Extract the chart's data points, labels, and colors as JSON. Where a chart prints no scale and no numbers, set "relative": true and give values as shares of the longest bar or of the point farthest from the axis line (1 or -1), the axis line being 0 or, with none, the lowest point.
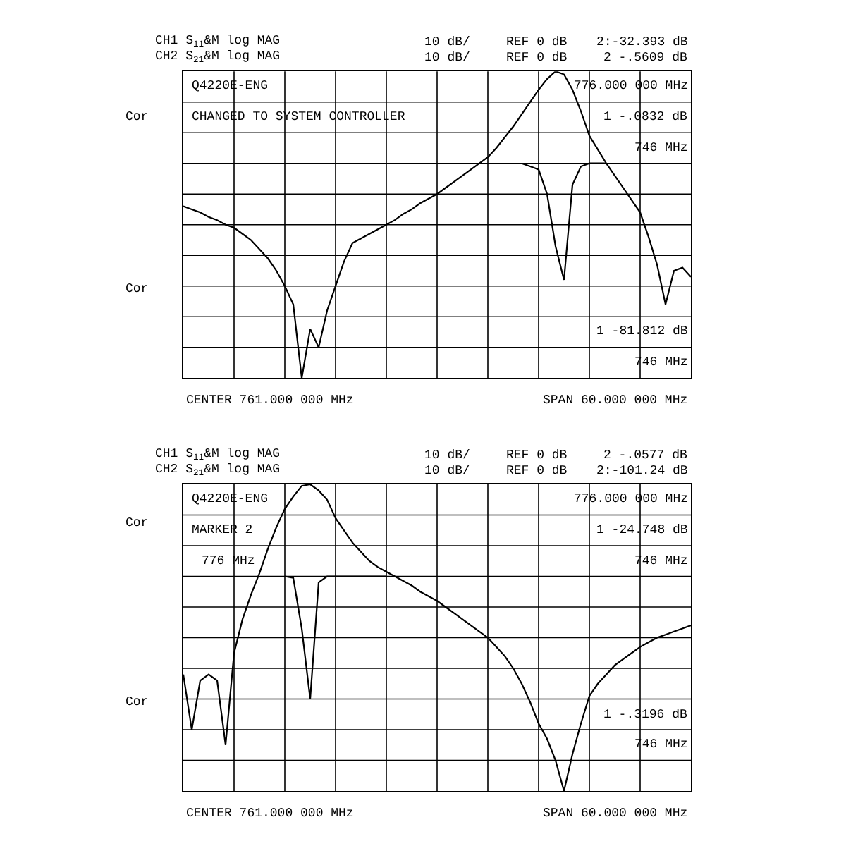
{
  "chart_data": [
    {
      "type": "line",
      "relative": true,
      "grid": true,
      "marker": "none",
      "line_style": "solid",
      "categories": [
        null,
        null,
        null,
        null,
        null,
        null,
        null,
        null,
        null,
        null,
        null,
        null,
        null,
        null,
        null,
        null,
        null,
        null,
        null,
        null,
        null,
        null,
        null,
        null,
        null,
        null,
        null,
        null,
        null,
        null,
        null,
        null,
        null,
        null,
        null,
        null,
        null,
        null,
        null,
        null,
        null,
        null,
        null,
        null,
        null,
        null,
        null,
        null,
        null,
        null,
        null,
        null,
        null,
        null,
        null,
        null,
        null,
        null,
        null,
        null,
        null
      ],
      "series": [
        {
          "color": "#000000",
          "values": [
            0.56,
            0.55,
            0.54,
            0.525,
            0.515,
            0.5,
            0.49,
            0.47,
            0.45,
            0.42,
            0.39,
            0.35,
            0.3,
            0.24,
            0.0,
            0.16,
            0.1,
            0.22,
            0.3,
            0.38,
            0.44,
            0.455,
            0.47,
            0.485,
            0.5,
            0.515,
            0.535,
            0.55,
            0.57,
            0.585,
            0.6,
            0.62,
            0.64,
            0.66,
            0.68,
            0.7,
            0.72,
            0.75,
            0.785,
            0.82,
            0.86,
            0.9,
            0.94,
            0.975,
            1.0,
            0.99,
            0.94,
            0.87,
            0.79,
            0.745,
            0.7,
            0.66,
            0.62,
            0.58,
            0.54,
            0.46,
            0.37,
            0.24,
            0.35,
            0.36,
            0.33
          ]
        },
        {
          "color": "#000000",
          "values": [
            null,
            null,
            null,
            null,
            null,
            null,
            null,
            null,
            null,
            null,
            null,
            null,
            null,
            null,
            null,
            null,
            null,
            null,
            null,
            null,
            null,
            null,
            null,
            null,
            null,
            null,
            null,
            null,
            null,
            null,
            null,
            null,
            null,
            null,
            null,
            null,
            null,
            null,
            null,
            null,
            0.7,
            0.69,
            0.68,
            0.6,
            0.43,
            0.32,
            0.63,
            0.69,
            0.7,
            0.7,
            0.7,
            null,
            null,
            null,
            null,
            null,
            null,
            null,
            null,
            null,
            null
          ]
        }
      ],
      "annotations": [
        "CH1 S$_{11}$&M log MAG",
        "10 dB/",
        "REF 0 dB",
        "2:-32.393 dB",
        "CH2 S$_{21}$&M log MAG",
        "10 dB/",
        "REF 0 dB",
        "2 -.5609 dB",
        "776.000 000 MHz",
        "Q4220E-ENG",
        "CHANGED TO SYSTEM CONTROLLER",
        "1 -.0832 dB",
        "746 MHz",
        "1 -81.812 dB",
        "746 MHz",
        "Cor",
        "Cor",
        "CENTER 761.000 000 MHz",
        "SPAN 60.000 000 MHz"
      ]
    },
    {
      "type": "line",
      "relative": true,
      "grid": true,
      "marker": "none",
      "line_style": "solid",
      "categories": [
        null,
        null,
        null,
        null,
        null,
        null,
        null,
        null,
        null,
        null,
        null,
        null,
        null,
        null,
        null,
        null,
        null,
        null,
        null,
        null,
        null,
        null,
        null,
        null,
        null,
        null,
        null,
        null,
        null,
        null,
        null,
        null,
        null,
        null,
        null,
        null,
        null,
        null,
        null,
        null,
        null,
        null,
        null,
        null,
        null,
        null,
        null,
        null,
        null,
        null,
        null,
        null,
        null,
        null,
        null,
        null,
        null,
        null,
        null,
        null,
        null
      ],
      "series": [
        {
          "color": "#000000",
          "values": [
            0.38,
            0.2,
            0.36,
            0.38,
            0.36,
            0.15,
            0.45,
            0.56,
            0.64,
            0.71,
            0.79,
            0.86,
            0.92,
            0.96,
            0.995,
            1.0,
            0.98,
            0.95,
            0.89,
            0.85,
            0.81,
            0.78,
            0.75,
            0.73,
            0.715,
            0.7,
            0.685,
            0.67,
            0.65,
            0.635,
            0.62,
            0.6,
            0.58,
            0.56,
            0.54,
            0.52,
            0.5,
            0.47,
            0.44,
            0.4,
            0.35,
            0.29,
            0.22,
            0.17,
            0.1,
            0.0,
            0.12,
            0.22,
            0.31,
            0.35,
            0.38,
            0.41,
            0.43,
            0.45,
            0.47,
            0.485,
            0.5,
            0.51,
            0.52,
            0.53,
            0.54
          ]
        },
        {
          "color": "#000000",
          "values": [
            null,
            null,
            null,
            null,
            null,
            null,
            null,
            null,
            null,
            null,
            null,
            null,
            0.7,
            0.695,
            0.53,
            0.3,
            0.68,
            0.7,
            0.7,
            0.7,
            0.7,
            0.7,
            0.7,
            0.7,
            0.7,
            null,
            null,
            null,
            null,
            null,
            null,
            null,
            null,
            null,
            null,
            null,
            null,
            null,
            null,
            null,
            null,
            null,
            null,
            null,
            null,
            null,
            null,
            null,
            null,
            null,
            null,
            null,
            null,
            null,
            null,
            null,
            null,
            null,
            null,
            null,
            null
          ]
        }
      ],
      "annotations": [
        "CH1 S$_{11}$&M log MAG",
        "10 dB/",
        "REF 0 dB",
        "2 -.0577 dB",
        "CH2 S$_{21}$&M log MAG",
        "10 dB/",
        "REF 0 dB",
        "2:-101.24 dB",
        "776.000 000 MHz",
        "Q4220E-ENG",
        "MARKER 2",
        "776 MHz",
        "1 -24.748 dB",
        "746 MHz",
        "1 -.3196 dB",
        "746 MHz",
        "Cor",
        "Cor",
        "CENTER 761.000 000 MHz",
        "SPAN 60.000 000 MHz"
      ]
    }
  ]
}
